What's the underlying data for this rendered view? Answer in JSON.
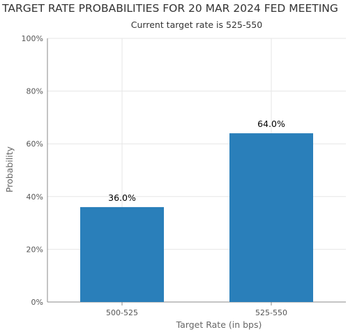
{
  "chart_data": {
    "type": "bar",
    "title": "TARGET RATE PROBABILITIES FOR 20 MAR 2024 FED MEETING",
    "subtitle": "Current target rate is 525-550",
    "xlabel": "Target Rate (in bps)",
    "ylabel": "Probability",
    "categories": [
      "500-525",
      "525-550"
    ],
    "values": [
      36.0,
      64.0
    ],
    "data_labels": [
      "36.0%",
      "64.0%"
    ],
    "ylim": [
      0,
      100
    ],
    "yticks": [
      0,
      20,
      40,
      60,
      80,
      100
    ],
    "ytick_labels": [
      "0%",
      "20%",
      "40%",
      "60%",
      "80%",
      "100%"
    ],
    "grid": true,
    "bar_color": "#2a7fba",
    "grid_color": "#e6e6e6"
  }
}
